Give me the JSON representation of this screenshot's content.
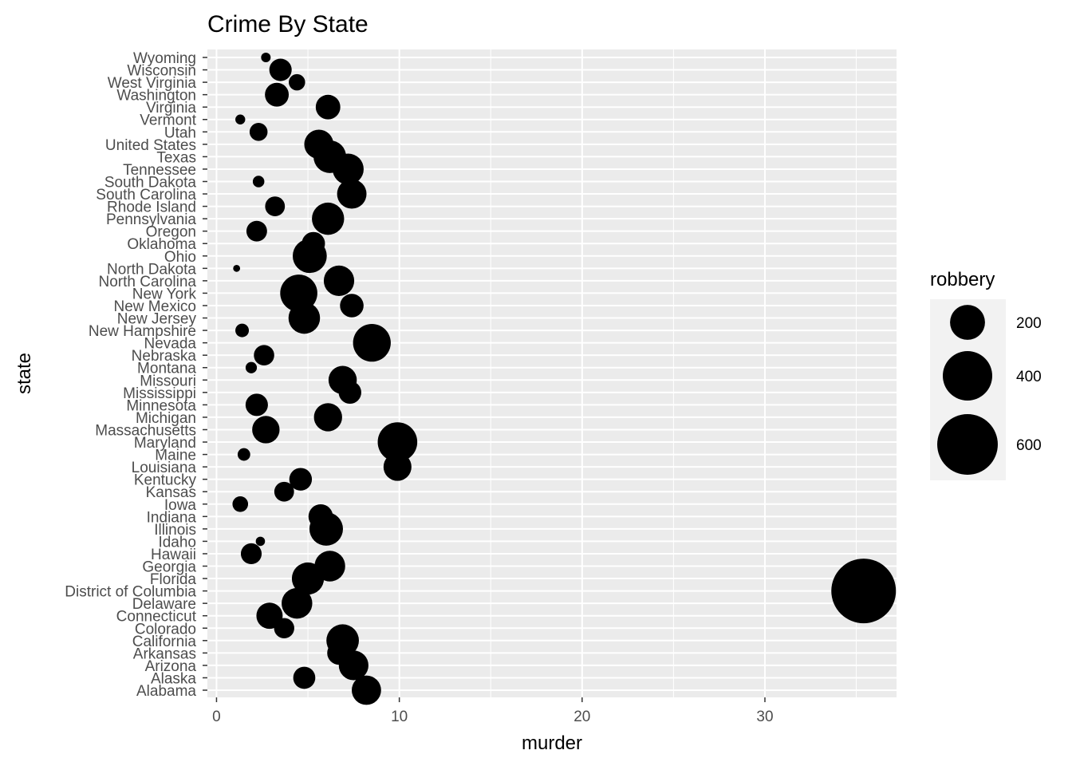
{
  "chart_data": {
    "type": "scatter",
    "title": "Crime By State",
    "xlabel": "murder",
    "ylabel": "state",
    "xlim": [
      -0.5,
      37.2
    ],
    "xticks": [
      0,
      10,
      20,
      30
    ],
    "grid": true,
    "legend": {
      "title": "robbery",
      "position": "right",
      "entries": [
        {
          "value": 200,
          "label": "200"
        },
        {
          "value": 400,
          "label": "400"
        },
        {
          "value": 600,
          "label": "600"
        }
      ]
    },
    "size_encoding": "robbery",
    "points": [
      {
        "state": "Alabama",
        "murder": 8.2,
        "robbery": 141
      },
      {
        "state": "Alaska",
        "murder": 4.8,
        "robbery": 80
      },
      {
        "state": "Arizona",
        "murder": 7.5,
        "robbery": 144
      },
      {
        "state": "Arkansas",
        "murder": 6.7,
        "robbery": 91
      },
      {
        "state": "California",
        "murder": 6.9,
        "robbery": 173
      },
      {
        "state": "Colorado",
        "murder": 3.7,
        "robbery": 67
      },
      {
        "state": "Connecticut",
        "murder": 2.9,
        "robbery": 113
      },
      {
        "state": "Delaware",
        "murder": 4.4,
        "robbery": 154
      },
      {
        "state": "District of Columbia",
        "murder": 35.4,
        "robbery": 683
      },
      {
        "state": "Florida",
        "murder": 5.0,
        "robbery": 169
      },
      {
        "state": "Georgia",
        "murder": 6.2,
        "robbery": 154
      },
      {
        "state": "Hawaii",
        "murder": 1.9,
        "robbery": 71
      },
      {
        "state": "Idaho",
        "murder": 2.4,
        "robbery": 14
      },
      {
        "state": "Illinois",
        "murder": 6.0,
        "robbery": 184
      },
      {
        "state": "Indiana",
        "murder": 5.7,
        "robbery": 98
      },
      {
        "state": "Iowa",
        "murder": 1.3,
        "robbery": 40
      },
      {
        "state": "Kansas",
        "murder": 3.7,
        "robbery": 64
      },
      {
        "state": "Kentucky",
        "murder": 4.6,
        "robbery": 84
      },
      {
        "state": "Louisiana",
        "murder": 9.9,
        "robbery": 128
      },
      {
        "state": "Maine",
        "murder": 1.5,
        "robbery": 26
      },
      {
        "state": "Maryland",
        "murder": 9.9,
        "robbery": 256
      },
      {
        "state": "Massachusetts",
        "murder": 2.7,
        "robbery": 123
      },
      {
        "state": "Michigan",
        "murder": 6.1,
        "robbery": 130
      },
      {
        "state": "Minnesota",
        "murder": 2.2,
        "robbery": 82
      },
      {
        "state": "Mississippi",
        "murder": 7.3,
        "robbery": 84
      },
      {
        "state": "Missouri",
        "murder": 6.9,
        "robbery": 131
      },
      {
        "state": "Montana",
        "murder": 1.9,
        "robbery": 21
      },
      {
        "state": "Nebraska",
        "murder": 2.6,
        "robbery": 68
      },
      {
        "state": "Nevada",
        "murder": 8.5,
        "robbery": 233
      },
      {
        "state": "New Hampshire",
        "murder": 1.4,
        "robbery": 30
      },
      {
        "state": "New Jersey",
        "murder": 4.8,
        "robbery": 163
      },
      {
        "state": "New Mexico",
        "murder": 7.4,
        "robbery": 91
      },
      {
        "state": "New York",
        "murder": 4.5,
        "robbery": 226
      },
      {
        "state": "North Carolina",
        "murder": 6.7,
        "robbery": 152
      },
      {
        "state": "North Dakota",
        "murder": 1.1,
        "robbery": 8
      },
      {
        "state": "Ohio",
        "murder": 5.1,
        "robbery": 190
      },
      {
        "state": "Oklahoma",
        "murder": 5.3,
        "robbery": 88
      },
      {
        "state": "Oregon",
        "murder": 2.2,
        "robbery": 70
      },
      {
        "state": "Pennsylvania",
        "murder": 6.1,
        "robbery": 170
      },
      {
        "state": "Rhode Island",
        "murder": 3.2,
        "robbery": 64
      },
      {
        "state": "South Carolina",
        "murder": 7.4,
        "robbery": 142
      },
      {
        "state": "South Dakota",
        "murder": 2.3,
        "robbery": 22
      },
      {
        "state": "Tennessee",
        "murder": 7.2,
        "robbery": 158
      },
      {
        "state": "Texas",
        "murder": 6.2,
        "robbery": 174
      },
      {
        "state": "United States",
        "murder": 5.6,
        "robbery": 140
      },
      {
        "state": "Utah",
        "murder": 2.3,
        "robbery": 53
      },
      {
        "state": "Vermont",
        "murder": 1.3,
        "robbery": 16
      },
      {
        "state": "Virginia",
        "murder": 6.1,
        "robbery": 99
      },
      {
        "state": "Washington",
        "murder": 3.3,
        "robbery": 93
      },
      {
        "state": "West Virginia",
        "murder": 4.4,
        "robbery": 44
      },
      {
        "state": "Wisconsin",
        "murder": 3.5,
        "robbery": 82
      },
      {
        "state": "Wyoming",
        "murder": 2.7,
        "robbery": 15
      }
    ]
  }
}
